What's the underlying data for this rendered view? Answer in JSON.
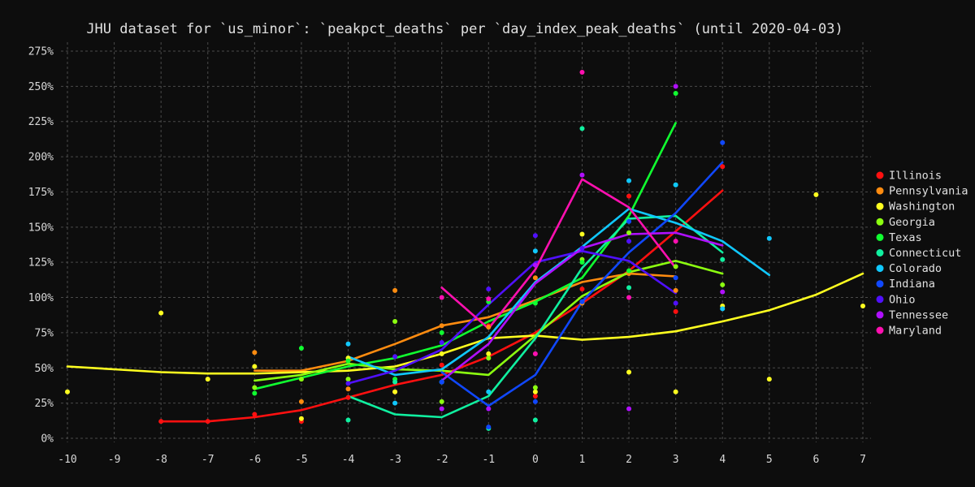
{
  "chart_data": {
    "type": "line",
    "title": "JHU dataset for `us_minor`: `peakpct_deaths` per `day_index_peak_deaths` (until 2020-04-03)",
    "xlabel": "",
    "ylabel": "",
    "xlim": [
      -10,
      7
    ],
    "ylim": [
      0,
      2.75
    ],
    "x_ticks": [
      -10,
      -9,
      -8,
      -7,
      -6,
      -5,
      -4,
      -3,
      -2,
      -1,
      0,
      1,
      2,
      3,
      4,
      5,
      6,
      7
    ],
    "y_ticks": [
      0,
      0.25,
      0.5,
      0.75,
      1.0,
      1.25,
      1.5,
      1.75,
      2.0,
      2.25,
      2.5,
      2.75
    ],
    "y_tick_labels": [
      "0%",
      "25%",
      "50%",
      "75%",
      "100%",
      "125%",
      "150%",
      "175%",
      "200%",
      "225%",
      "250%",
      "275%"
    ],
    "grid": true,
    "legend_placement": "right",
    "series": [
      {
        "name": "Illinois",
        "color": "#ff1010",
        "line": [
          [
            -8,
            0.12
          ],
          [
            -7,
            0.12
          ],
          [
            -6,
            0.15
          ],
          [
            -5,
            0.2
          ],
          [
            -4,
            0.29
          ],
          [
            -3,
            0.38
          ],
          [
            -2,
            0.45
          ],
          [
            -1,
            0.58
          ],
          [
            0,
            0.75
          ],
          [
            1,
            0.96
          ],
          [
            2,
            1.19
          ],
          [
            3,
            1.47
          ],
          [
            4,
            1.76
          ]
        ],
        "points": [
          [
            -8,
            0.12
          ],
          [
            -7,
            0.12
          ],
          [
            -6,
            0.17
          ],
          [
            -5,
            0.12
          ],
          [
            -4,
            0.29
          ],
          [
            -3,
            0.33
          ],
          [
            -2,
            0.52
          ],
          [
            -1,
            0.8
          ],
          [
            0,
            0.3
          ],
          [
            1,
            1.06
          ],
          [
            2,
            1.72
          ],
          [
            3,
            0.9
          ],
          [
            4,
            1.93
          ]
        ]
      },
      {
        "name": "Pennsylvania",
        "color": "#ff8c10",
        "line": [
          [
            -6,
            0.48
          ],
          [
            -5,
            0.48
          ],
          [
            -4,
            0.55
          ],
          [
            -3,
            0.67
          ],
          [
            -2,
            0.8
          ],
          [
            -1,
            0.86
          ],
          [
            0,
            0.98
          ],
          [
            1,
            1.11
          ],
          [
            2,
            1.17
          ],
          [
            3,
            1.15
          ]
        ],
        "points": [
          [
            -6,
            0.61
          ],
          [
            -5,
            0.26
          ],
          [
            -4,
            0.35
          ],
          [
            -3,
            1.05
          ],
          [
            -2,
            0.8
          ],
          [
            -1,
            0.79
          ],
          [
            0,
            1.14
          ],
          [
            1,
            0.96
          ],
          [
            2,
            1.17
          ],
          [
            3,
            1.05
          ]
        ]
      },
      {
        "name": "Washington",
        "color": "#ffff20",
        "line": [
          [
            -10,
            0.51
          ],
          [
            -9,
            0.49
          ],
          [
            -8,
            0.47
          ],
          [
            -7,
            0.46
          ],
          [
            -6,
            0.46
          ],
          [
            -5,
            0.47
          ],
          [
            -4,
            0.48
          ],
          [
            -3,
            0.51
          ],
          [
            -2,
            0.6
          ],
          [
            -1,
            0.71
          ],
          [
            0,
            0.73
          ],
          [
            1,
            0.7
          ],
          [
            2,
            0.72
          ],
          [
            3,
            0.76
          ],
          [
            4,
            0.83
          ],
          [
            5,
            0.91
          ],
          [
            6,
            1.02
          ],
          [
            7,
            1.17
          ]
        ],
        "points": [
          [
            -10,
            0.33
          ],
          [
            -8,
            0.89
          ],
          [
            -7,
            0.42
          ],
          [
            -6,
            0.51
          ],
          [
            -5,
            0.14
          ],
          [
            -4,
            0.57
          ],
          [
            -3,
            0.33
          ],
          [
            -2,
            0.6
          ],
          [
            -1,
            0.6
          ],
          [
            0,
            0.33
          ],
          [
            1,
            1.45
          ],
          [
            2,
            0.47
          ],
          [
            3,
            0.33
          ],
          [
            4,
            0.94
          ],
          [
            5,
            0.42
          ],
          [
            6,
            1.73
          ],
          [
            7,
            0.94
          ]
        ]
      },
      {
        "name": "Georgia",
        "color": "#8cff10",
        "line": [
          [
            -6,
            0.41
          ],
          [
            -5,
            0.45
          ],
          [
            -4,
            0.53
          ],
          [
            -3,
            0.49
          ],
          [
            -2,
            0.48
          ],
          [
            -1,
            0.45
          ],
          [
            0,
            0.73
          ],
          [
            1,
            1.01
          ],
          [
            2,
            1.18
          ],
          [
            3,
            1.26
          ],
          [
            4,
            1.17
          ]
        ],
        "points": [
          [
            -6,
            0.36
          ],
          [
            -5,
            0.42
          ],
          [
            -4,
            0.42
          ],
          [
            -3,
            0.83
          ],
          [
            -2,
            0.26
          ],
          [
            -1,
            0.57
          ],
          [
            0,
            0.36
          ],
          [
            1,
            1.27
          ],
          [
            2,
            1.46
          ],
          [
            3,
            1.22
          ],
          [
            4,
            1.09
          ]
        ]
      },
      {
        "name": "Texas",
        "color": "#10ff30",
        "line": [
          [
            -6,
            0.35
          ],
          [
            -5,
            0.43
          ],
          [
            -4,
            0.51
          ],
          [
            -3,
            0.57
          ],
          [
            -2,
            0.66
          ],
          [
            -1,
            0.83
          ],
          [
            0,
            0.97
          ],
          [
            1,
            1.14
          ],
          [
            2,
            1.58
          ],
          [
            3,
            2.24
          ]
        ],
        "points": [
          [
            -6,
            0.32
          ],
          [
            -5,
            0.64
          ],
          [
            -4,
            0.55
          ],
          [
            -3,
            0.42
          ],
          [
            -2,
            0.75
          ],
          [
            -1,
            0.97
          ],
          [
            0,
            0.96
          ],
          [
            1,
            1.25
          ],
          [
            2,
            1.19
          ],
          [
            3,
            2.45
          ]
        ]
      },
      {
        "name": "Connecticut",
        "color": "#10f0a0",
        "line": [
          [
            -4,
            0.3
          ],
          [
            -3,
            0.17
          ],
          [
            -2,
            0.15
          ],
          [
            -1,
            0.3
          ],
          [
            0,
            0.71
          ],
          [
            1,
            1.21
          ],
          [
            2,
            1.56
          ],
          [
            3,
            1.58
          ],
          [
            4,
            1.32
          ]
        ],
        "points": [
          [
            -4,
            0.13
          ],
          [
            -3,
            0.4
          ],
          [
            -2,
            0.4
          ],
          [
            -1,
            0.07
          ],
          [
            0,
            0.13
          ],
          [
            1,
            2.2
          ],
          [
            2,
            1.07
          ],
          [
            3,
            1.8
          ],
          [
            4,
            1.27
          ]
        ]
      },
      {
        "name": "Colorado",
        "color": "#10c8ff",
        "line": [
          [
            -4,
            0.58
          ],
          [
            -3,
            0.45
          ],
          [
            -2,
            0.49
          ],
          [
            -1,
            0.72
          ],
          [
            0,
            1.11
          ],
          [
            1,
            1.36
          ],
          [
            2,
            1.63
          ],
          [
            3,
            1.53
          ],
          [
            4,
            1.4
          ],
          [
            5,
            1.16
          ]
        ],
        "points": [
          [
            -4,
            0.67
          ],
          [
            -3,
            0.25
          ],
          [
            -2,
            0.4
          ],
          [
            -1,
            0.33
          ],
          [
            0,
            1.33
          ],
          [
            1,
            0.97
          ],
          [
            2,
            1.83
          ],
          [
            3,
            1.8
          ],
          [
            4,
            0.92
          ],
          [
            5,
            1.42
          ]
        ]
      },
      {
        "name": "Indiana",
        "color": "#1048ff",
        "line": [
          [
            -2,
            0.47
          ],
          [
            -1,
            0.23
          ],
          [
            0,
            0.45
          ],
          [
            1,
            0.97
          ],
          [
            2,
            1.32
          ],
          [
            3,
            1.6
          ],
          [
            4,
            1.96
          ]
        ],
        "points": [
          [
            -2,
            0.4
          ],
          [
            -1,
            0.08
          ],
          [
            0,
            0.26
          ],
          [
            1,
            0.97
          ],
          [
            2,
            1.54
          ],
          [
            3,
            1.14
          ],
          [
            4,
            2.1
          ]
        ]
      },
      {
        "name": "Ohio",
        "color": "#5010ff",
        "line": [
          [
            -4,
            0.39
          ],
          [
            -3,
            0.48
          ],
          [
            -2,
            0.63
          ],
          [
            -1,
            0.95
          ],
          [
            0,
            1.25
          ],
          [
            1,
            1.33
          ],
          [
            2,
            1.26
          ],
          [
            3,
            1.03
          ]
        ],
        "points": [
          [
            -4,
            0.39
          ],
          [
            -3,
            0.58
          ],
          [
            -2,
            0.68
          ],
          [
            -1,
            1.06
          ],
          [
            0,
            1.44
          ],
          [
            1,
            1.35
          ],
          [
            2,
            1.4
          ],
          [
            3,
            0.96
          ]
        ]
      },
      {
        "name": "Tennessee",
        "color": "#b010ff",
        "line": [
          [
            -2,
            0.41
          ],
          [
            -1,
            0.67
          ],
          [
            0,
            1.1
          ],
          [
            1,
            1.35
          ],
          [
            2,
            1.45
          ],
          [
            3,
            1.46
          ],
          [
            4,
            1.37
          ]
        ],
        "points": [
          [
            -2,
            0.21
          ],
          [
            -1,
            0.21
          ],
          [
            0,
            1.23
          ],
          [
            1,
            1.87
          ],
          [
            2,
            0.21
          ],
          [
            3,
            2.5
          ],
          [
            4,
            1.04
          ]
        ]
      },
      {
        "name": "Maryland",
        "color": "#ff10b0",
        "line": [
          [
            -2,
            1.07
          ],
          [
            -1,
            0.78
          ],
          [
            0,
            1.2
          ],
          [
            1,
            1.84
          ],
          [
            2,
            1.64
          ],
          [
            3,
            1.21
          ]
        ],
        "points": [
          [
            -2,
            1.0
          ],
          [
            -1,
            0.99
          ],
          [
            0,
            0.6
          ],
          [
            1,
            2.6
          ],
          [
            2,
            1.0
          ],
          [
            3,
            1.4
          ]
        ]
      }
    ]
  }
}
